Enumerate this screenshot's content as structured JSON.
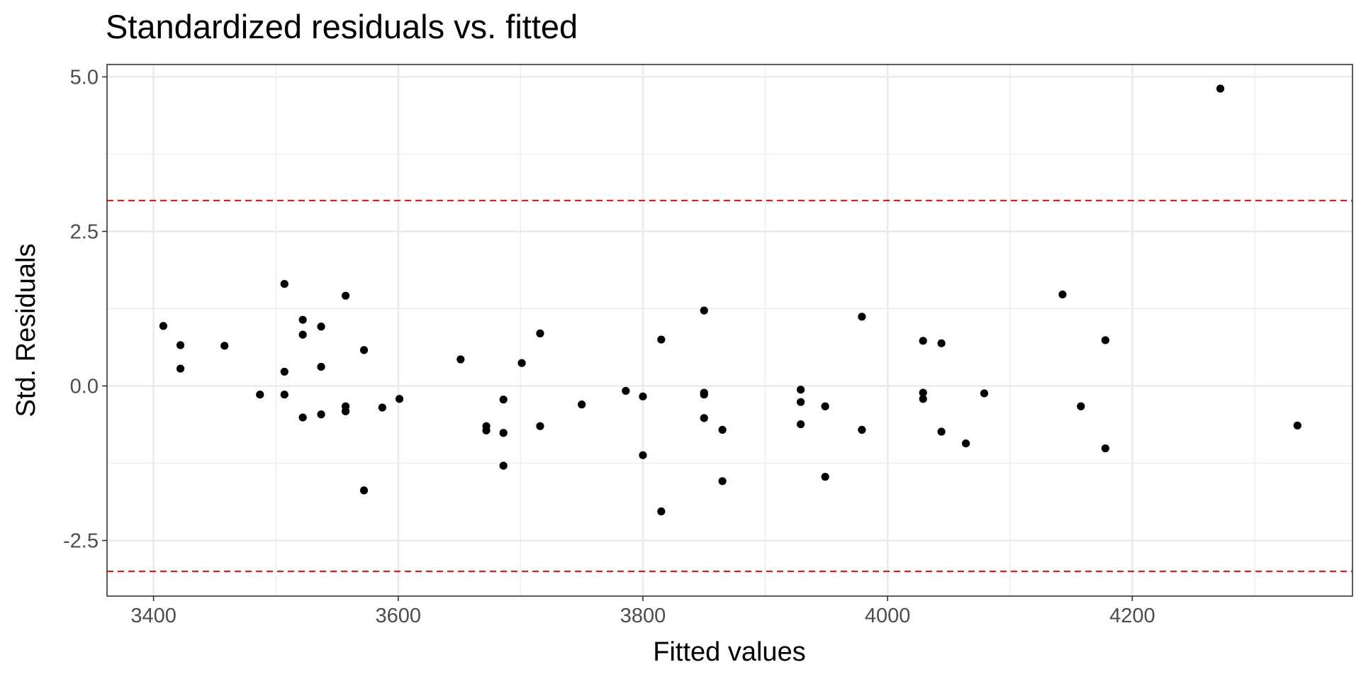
{
  "chart_data": {
    "type": "scatter",
    "title": "Standardized residuals vs. fitted",
    "xlabel": "Fitted values",
    "ylabel": "Std. Residuals",
    "xlim": [
      3362,
      4380
    ],
    "ylim": [
      -3.4,
      5.2
    ],
    "x_ticks": [
      3400,
      3600,
      3800,
      4000,
      4200
    ],
    "x_tick_labels": [
      "3400",
      "3600",
      "3800",
      "4000",
      "4200"
    ],
    "y_ticks": [
      5.0,
      2.5,
      0.0,
      -2.5
    ],
    "y_tick_labels": [
      "5.0",
      "2.5",
      "0.0",
      "-2.5"
    ],
    "reference_lines": [
      3,
      -3
    ],
    "grid": true,
    "points": [
      {
        "x": 3408,
        "y": 0.97
      },
      {
        "x": 3422,
        "y": 0.66
      },
      {
        "x": 3422,
        "y": 0.28
      },
      {
        "x": 3458,
        "y": 0.65
      },
      {
        "x": 3487,
        "y": -0.14
      },
      {
        "x": 3507,
        "y": 1.65
      },
      {
        "x": 3507,
        "y": 0.23
      },
      {
        "x": 3507,
        "y": -0.14
      },
      {
        "x": 3522,
        "y": 1.07
      },
      {
        "x": 3522,
        "y": 0.83
      },
      {
        "x": 3522,
        "y": -0.51
      },
      {
        "x": 3537,
        "y": 0.96
      },
      {
        "x": 3537,
        "y": 0.31
      },
      {
        "x": 3537,
        "y": -0.46
      },
      {
        "x": 3557,
        "y": 1.46
      },
      {
        "x": 3557,
        "y": -0.33
      },
      {
        "x": 3557,
        "y": -0.41
      },
      {
        "x": 3572,
        "y": 0.58
      },
      {
        "x": 3572,
        "y": -1.69
      },
      {
        "x": 3587,
        "y": -0.35
      },
      {
        "x": 3601,
        "y": -0.21
      },
      {
        "x": 3651,
        "y": 0.43
      },
      {
        "x": 3672,
        "y": -0.65
      },
      {
        "x": 3672,
        "y": -0.72
      },
      {
        "x": 3686,
        "y": -0.22
      },
      {
        "x": 3686,
        "y": -0.76
      },
      {
        "x": 3686,
        "y": -1.29
      },
      {
        "x": 3701,
        "y": 0.37
      },
      {
        "x": 3716,
        "y": 0.85
      },
      {
        "x": 3716,
        "y": -0.65
      },
      {
        "x": 3750,
        "y": -0.3
      },
      {
        "x": 3786,
        "y": -0.08
      },
      {
        "x": 3800,
        "y": -0.17
      },
      {
        "x": 3800,
        "y": -1.12
      },
      {
        "x": 3815,
        "y": 0.75
      },
      {
        "x": 3815,
        "y": -2.03
      },
      {
        "x": 3850,
        "y": 1.22
      },
      {
        "x": 3850,
        "y": -0.11
      },
      {
        "x": 3850,
        "y": -0.14
      },
      {
        "x": 3850,
        "y": -0.52
      },
      {
        "x": 3865,
        "y": -0.71
      },
      {
        "x": 3865,
        "y": -1.54
      },
      {
        "x": 3929,
        "y": -0.06
      },
      {
        "x": 3929,
        "y": -0.26
      },
      {
        "x": 3929,
        "y": -0.62
      },
      {
        "x": 3949,
        "y": -0.33
      },
      {
        "x": 3949,
        "y": -1.47
      },
      {
        "x": 3979,
        "y": 1.12
      },
      {
        "x": 3979,
        "y": -0.71
      },
      {
        "x": 4029,
        "y": 0.73
      },
      {
        "x": 4029,
        "y": -0.11
      },
      {
        "x": 4029,
        "y": -0.21
      },
      {
        "x": 4044,
        "y": 0.69
      },
      {
        "x": 4044,
        "y": -0.74
      },
      {
        "x": 4064,
        "y": -0.93
      },
      {
        "x": 4079,
        "y": -0.12
      },
      {
        "x": 4143,
        "y": 1.48
      },
      {
        "x": 4158,
        "y": -0.33
      },
      {
        "x": 4178,
        "y": 0.74
      },
      {
        "x": 4178,
        "y": -1.01
      },
      {
        "x": 4272,
        "y": 4.81
      },
      {
        "x": 4335,
        "y": -0.64
      }
    ],
    "colors": {
      "points": "#000000",
      "reference_line": "#ff0000",
      "grid_major": "#ebebeb",
      "grid_minor": "#ebebeb",
      "panel_border": "#333333",
      "tick_label": "#4d4d4d"
    }
  }
}
